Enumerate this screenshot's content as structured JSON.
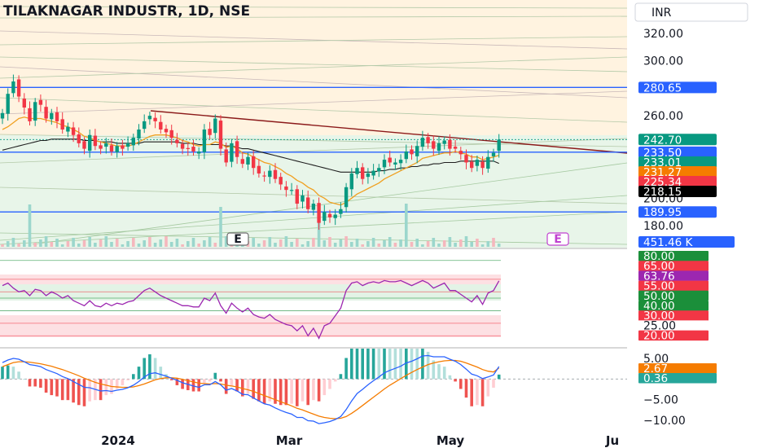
{
  "header": {
    "title": "TILAKNAGAR INDUSTR, 1D, NSE",
    "currency": "INR"
  },
  "chart_data": [
    {
      "type": "line",
      "subtype": "candlestick",
      "title": "TILAKNAGAR INDUSTR, 1D, NSE",
      "ylim": [
        168,
        340
      ],
      "yticks": [
        "320.00",
        "300.00",
        "260.00",
        "200.00",
        "180.00"
      ],
      "xticks": [
        "2024",
        "Mar",
        "May",
        "Ju"
      ],
      "price_closes": [
        262,
        276,
        285,
        274,
        266,
        256,
        270,
        268,
        258,
        262,
        256,
        250,
        252,
        246,
        240,
        236,
        246,
        238,
        236,
        240,
        234,
        238,
        236,
        240,
        244,
        250,
        256,
        260,
        256,
        250,
        248,
        244,
        240,
        236,
        236,
        234,
        234,
        250,
        246,
        258,
        236,
        226,
        240,
        230,
        225,
        230,
        222,
        218,
        216,
        220,
        214,
        210,
        206,
        206,
        196,
        202,
        192,
        196,
        182,
        190,
        186,
        188,
        192,
        208,
        218,
        222,
        214,
        218,
        220,
        222,
        228,
        226,
        226,
        228,
        234,
        232,
        238,
        244,
        240,
        236,
        240,
        242,
        236,
        236,
        232,
        226,
        222,
        228,
        222,
        230,
        233,
        242.7
      ],
      "ema_fast": [
        250,
        252,
        255,
        258,
        259,
        258,
        258,
        258,
        257,
        256,
        255,
        253,
        252,
        250,
        248,
        245,
        244,
        242,
        241,
        240,
        239,
        238,
        238,
        238,
        239,
        241,
        243,
        245,
        246,
        246,
        246,
        245,
        244,
        242,
        241,
        239,
        238,
        239,
        239,
        241,
        240,
        237,
        238,
        236,
        233,
        232,
        230,
        228,
        226,
        225,
        223,
        221,
        218,
        216,
        213,
        211,
        208,
        206,
        202,
        200,
        197,
        196,
        195,
        197,
        200,
        203,
        205,
        207,
        209,
        211,
        214,
        216,
        218,
        220,
        222,
        224,
        226,
        229,
        230,
        231,
        232,
        233,
        233,
        234,
        233,
        232,
        230,
        230,
        228,
        229,
        230,
        231.27
      ],
      "ema_slow": [
        235,
        236,
        237,
        238,
        239,
        240,
        241,
        242,
        242,
        243,
        243,
        243,
        243,
        243,
        243,
        242,
        242,
        242,
        241,
        241,
        241,
        240,
        240,
        240,
        240,
        240,
        241,
        241,
        241,
        241,
        241,
        241,
        241,
        240,
        240,
        240,
        239,
        239,
        239,
        239,
        239,
        238,
        238,
        237,
        236,
        236,
        235,
        234,
        233,
        232,
        231,
        230,
        229,
        228,
        227,
        226,
        225,
        224,
        223,
        222,
        221,
        220,
        219,
        219,
        219,
        219,
        219,
        219,
        219,
        220,
        220,
        221,
        221,
        222,
        222,
        223,
        223,
        224,
        224,
        225,
        225,
        226,
        226,
        226,
        227,
        227,
        227,
        227,
        227,
        227,
        227,
        225.34
      ],
      "levels": [
        {
          "value": "280.65",
          "color": "#2962ff"
        },
        {
          "value": "242.70",
          "color": "#089981"
        },
        {
          "value": "233.50",
          "color": "#2962ff"
        },
        {
          "value": "233.01",
          "color": "#089981"
        },
        {
          "value": "231.27",
          "color": "#f57c00"
        },
        {
          "value": "225.34",
          "color": "#f23645"
        },
        {
          "value": "218.15",
          "color": "#000000"
        },
        {
          "value": "189.95",
          "color": "#2962ff"
        },
        {
          "value": "451.46 K",
          "color": "#2962ff"
        }
      ],
      "markers": [
        "E",
        "E"
      ]
    },
    {
      "type": "line",
      "subtype": "RSI",
      "ylim": [
        15,
        85
      ],
      "guide_levels": [
        {
          "value": "80.00",
          "color": "#1b8f3a"
        },
        {
          "value": "65.00",
          "color": "#f23645"
        },
        {
          "value": "63.76",
          "color": "#9c27b0"
        },
        {
          "value": "55.00",
          "color": "#f23645"
        },
        {
          "value": "50.00",
          "color": "#1b8f3a"
        },
        {
          "value": "40.00",
          "color": "#1b8f3a"
        },
        {
          "value": "30.00",
          "color": "#f23645"
        },
        {
          "value": "25.00",
          "color": "#ffffff"
        },
        {
          "value": "20.00",
          "color": "#f23645"
        }
      ],
      "values": [
        60,
        62,
        58,
        55,
        56,
        52,
        57,
        56,
        52,
        55,
        53,
        50,
        52,
        48,
        46,
        44,
        48,
        44,
        43,
        46,
        44,
        46,
        45,
        47,
        48,
        52,
        56,
        58,
        55,
        52,
        50,
        48,
        46,
        44,
        44,
        43,
        43,
        50,
        48,
        54,
        44,
        38,
        46,
        42,
        39,
        42,
        37,
        35,
        34,
        37,
        33,
        31,
        29,
        28,
        24,
        28,
        20,
        26,
        18,
        28,
        30,
        36,
        42,
        56,
        62,
        63,
        60,
        62,
        63,
        62,
        64,
        63,
        63,
        64,
        62,
        60,
        62,
        64,
        62,
        58,
        60,
        62,
        56,
        56,
        53,
        50,
        47,
        52,
        45,
        54,
        56,
        63.76
      ]
    },
    {
      "type": "bar",
      "subtype": "MACD",
      "ylim": [
        -12,
        8
      ],
      "yticks": [
        "5.00",
        "−5.00",
        "−10.00"
      ],
      "tags": [
        {
          "value": "5.00",
          "color": "#ffffff"
        },
        {
          "value": "2.67",
          "color": "#f57c00"
        },
        {
          "value": "0.36",
          "color": "#26a69a"
        }
      ],
      "macd": [
        4,
        4.6,
        5,
        4.8,
        4.2,
        3.5,
        3.3,
        3,
        2.3,
        1.8,
        1.3,
        0.6,
        0.1,
        -0.6,
        -1.3,
        -2,
        -2.1,
        -2.5,
        -2.9,
        -2.8,
        -3,
        -2.7,
        -2.5,
        -2.1,
        -1.5,
        -0.6,
        0.5,
        1.3,
        1.5,
        1.1,
        0.7,
        0.2,
        -0.3,
        -0.9,
        -1.3,
        -1.7,
        -2,
        -1.4,
        -1.4,
        -0.6,
        -1.4,
        -2.7,
        -2.3,
        -2.9,
        -3.7,
        -3.8,
        -4.6,
        -5.3,
        -6,
        -6.3,
        -7,
        -7.6,
        -8.1,
        -8.5,
        -9.3,
        -9.3,
        -10.1,
        -10.2,
        -10.8,
        -10.6,
        -10.3,
        -9.8,
        -9.1,
        -7.4,
        -5.3,
        -3.5,
        -2.5,
        -1.4,
        -0.4,
        0.5,
        1.5,
        2.1,
        2.6,
        3.1,
        3.9,
        4.3,
        4.9,
        5.6,
        5.7,
        5.4,
        5.4,
        5.4,
        4.8,
        4.3,
        3.5,
        2.4,
        1.2,
        0.8,
        0.1,
        0.5,
        1,
        3.03
      ],
      "signal": [
        3,
        3.5,
        4,
        4.2,
        4.2,
        4.1,
        3.9,
        3.7,
        3.4,
        3.1,
        2.7,
        2.3,
        1.8,
        1.3,
        0.8,
        0.2,
        -0.3,
        -0.8,
        -1.2,
        -1.5,
        -1.8,
        -1.9,
        -2,
        -2,
        -1.9,
        -1.6,
        -1.2,
        -0.7,
        -0.2,
        0.1,
        0.3,
        0.3,
        0.2,
        -0.1,
        -0.4,
        -0.7,
        -1,
        -1.1,
        -1.2,
        -1.1,
        -1.2,
        -1.5,
        -1.7,
        -1.9,
        -2.3,
        -2.6,
        -3,
        -3.5,
        -4,
        -4.5,
        -5,
        -5.5,
        -6,
        -6.5,
        -7.1,
        -7.5,
        -8,
        -8.5,
        -9,
        -9.3,
        -9.5,
        -9.6,
        -9.5,
        -9.1,
        -8.3,
        -7.4,
        -6.4,
        -5.4,
        -4.4,
        -3.4,
        -2.4,
        -1.5,
        -0.7,
        0.1,
        0.9,
        1.6,
        2.3,
        2.9,
        3.5,
        3.9,
        4.2,
        4.4,
        4.5,
        4.5,
        4.3,
        3.9,
        3.4,
        2.9,
        2.3,
        1.9,
        1.7,
        2.67
      ]
    }
  ]
}
